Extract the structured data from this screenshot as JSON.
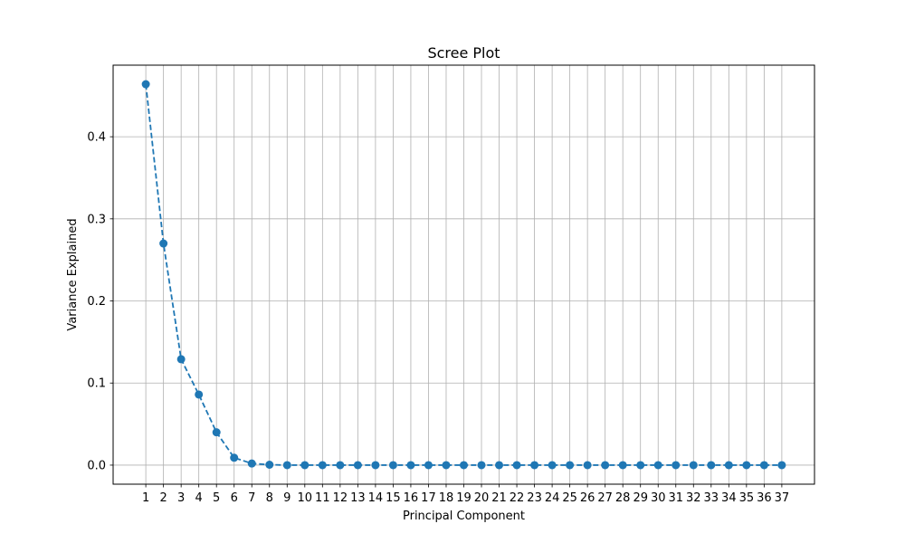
{
  "chart_data": {
    "type": "line",
    "title": "Scree Plot",
    "xlabel": "Principal Component",
    "ylabel": "Variance Explained",
    "x": [
      1,
      2,
      3,
      4,
      5,
      6,
      7,
      8,
      9,
      10,
      11,
      12,
      13,
      14,
      15,
      16,
      17,
      18,
      19,
      20,
      21,
      22,
      23,
      24,
      25,
      26,
      27,
      28,
      29,
      30,
      31,
      32,
      33,
      34,
      35,
      36,
      37
    ],
    "series": [
      {
        "name": "Variance Explained",
        "color": "#1f77b4",
        "line_style": "dashed",
        "marker": "circle",
        "values": [
          0.464,
          0.27,
          0.129,
          0.086,
          0.04,
          0.009,
          0.002,
          0.0005,
          0,
          0,
          0,
          0,
          0,
          0,
          0,
          0,
          0,
          0,
          0,
          0,
          0,
          0,
          0,
          0,
          0,
          0,
          0,
          0,
          0,
          0,
          0,
          0,
          0,
          0,
          0,
          0,
          0
        ]
      }
    ],
    "xlim": [
      -0.85,
      38.85
    ],
    "ylim": [
      -0.0232,
      0.4872
    ],
    "yticks": [
      0.0,
      0.1,
      0.2,
      0.3,
      0.4
    ],
    "ytick_labels": [
      "0.0",
      "0.1",
      "0.2",
      "0.3",
      "0.4"
    ],
    "xtick_labels": [
      "1",
      "2",
      "3",
      "4",
      "5",
      "6",
      "7",
      "8",
      "9",
      "10",
      "11",
      "12",
      "13",
      "14",
      "15",
      "16",
      "17",
      "18",
      "19",
      "20",
      "21",
      "22",
      "23",
      "24",
      "25",
      "26",
      "27",
      "28",
      "29",
      "30",
      "31",
      "32",
      "33",
      "34",
      "35",
      "36",
      "37"
    ],
    "grid": true,
    "grid_color": "#b0b0b0"
  }
}
